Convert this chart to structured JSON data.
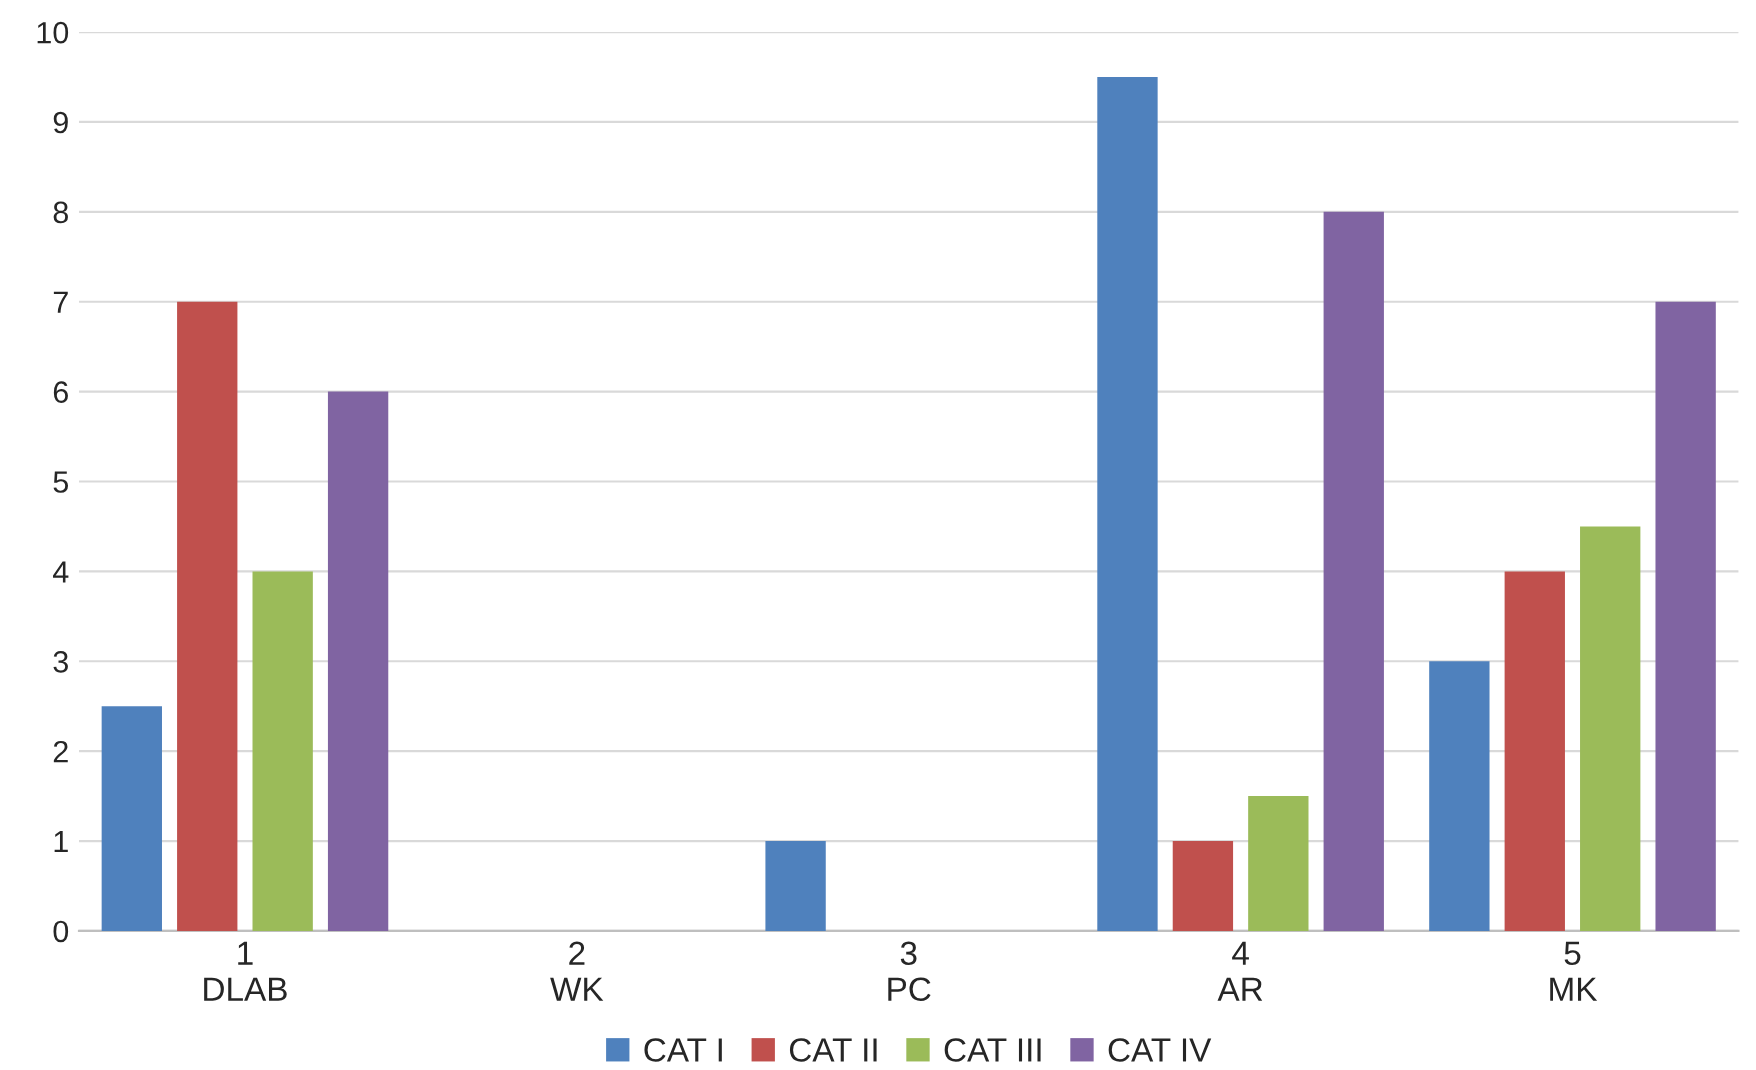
{
  "chart_data": {
    "type": "bar",
    "categories": [
      "1\nDLAB",
      "2\nWK",
      "3\nPC",
      "4\nAR",
      "5\nMK"
    ],
    "series": [
      {
        "name": "CAT I",
        "color": "#4f81bd",
        "values": [
          2.5,
          null,
          1,
          9.5,
          3
        ]
      },
      {
        "name": "CAT II",
        "color": "#c0504d",
        "values": [
          7,
          null,
          null,
          1,
          4
        ]
      },
      {
        "name": "CAT III",
        "color": "#9bbb59",
        "values": [
          4,
          null,
          null,
          1.5,
          4.5
        ]
      },
      {
        "name": "CAT IV",
        "color": "#8064a2",
        "values": [
          6,
          null,
          null,
          8,
          7
        ]
      }
    ],
    "ylim": [
      0,
      10
    ],
    "yticks": [
      0,
      1,
      2,
      3,
      4,
      5,
      6,
      7,
      8,
      9,
      10
    ],
    "grid": "y",
    "legend": "bottom"
  }
}
